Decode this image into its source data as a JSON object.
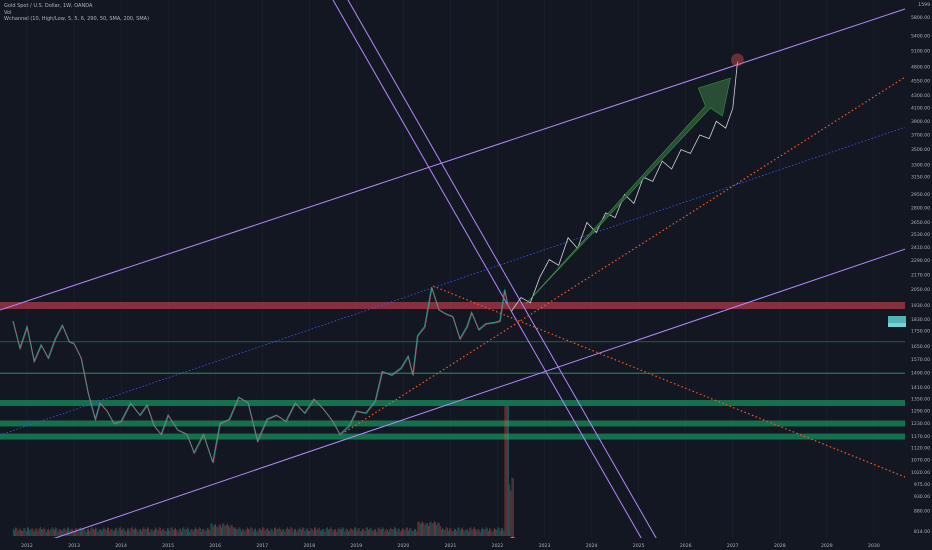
{
  "chart_data": {
    "type": "line",
    "title": "Gold Spot / U.S. Dollar, 1W, OANDA",
    "legend": [
      "Vol",
      "Wchannel (10, High/Low, 5, 5, 6, 290, 50, SMA, 200, SMA)"
    ],
    "top_axis_label": "1599",
    "x_ticks": [
      "2012",
      "2013",
      "2014",
      "2015",
      "2016",
      "2017",
      "2018",
      "2019",
      "2020",
      "2021",
      "2022",
      "2023",
      "2024",
      "2025",
      "2026",
      "2027",
      "2028",
      "2029",
      "2030"
    ],
    "y_ticks": [
      {
        "label": "5800.00",
        "value": 5800
      },
      {
        "label": "5400.00",
        "value": 5400
      },
      {
        "label": "5100.00",
        "value": 5100
      },
      {
        "label": "4800.00",
        "value": 4800
      },
      {
        "label": "4550.00",
        "value": 4550
      },
      {
        "label": "4300.00",
        "value": 4300
      },
      {
        "label": "4100.00",
        "value": 4100
      },
      {
        "label": "3900.00",
        "value": 3900
      },
      {
        "label": "3700.00",
        "value": 3700
      },
      {
        "label": "3500.00",
        "value": 3500
      },
      {
        "label": "3300.00",
        "value": 3300
      },
      {
        "label": "3150.00",
        "value": 3150
      },
      {
        "label": "2950.00",
        "value": 2950
      },
      {
        "label": "2800.00",
        "value": 2800
      },
      {
        "label": "2650.00",
        "value": 2650
      },
      {
        "label": "2530.00",
        "value": 2530
      },
      {
        "label": "2410.00",
        "value": 2410
      },
      {
        "label": "2290.00",
        "value": 2290
      },
      {
        "label": "2170.00",
        "value": 2170
      },
      {
        "label": "2050.00",
        "value": 2050
      },
      {
        "label": "1930.00",
        "value": 1930
      },
      {
        "label": "1830.00",
        "value": 1830
      },
      {
        "label": "1750.00",
        "value": 1750
      },
      {
        "label": "1650.00",
        "value": 1650
      },
      {
        "label": "1570.00",
        "value": 1570
      },
      {
        "label": "1490.00",
        "value": 1490
      },
      {
        "label": "1410.00",
        "value": 1410
      },
      {
        "label": "1350.00",
        "value": 1350
      },
      {
        "label": "1290.00",
        "value": 1290
      },
      {
        "label": "1230.00",
        "value": 1230
      },
      {
        "label": "1170.00",
        "value": 1170
      },
      {
        "label": "1120.00",
        "value": 1120
      },
      {
        "label": "1070.00",
        "value": 1070
      },
      {
        "label": "1020.00",
        "value": 1020
      },
      {
        "label": "975.00",
        "value": 975
      },
      {
        "label": "930.00",
        "value": 930
      },
      {
        "label": "880.00",
        "value": 880
      },
      {
        "label": "814.00",
        "value": 814
      }
    ],
    "price_path": [
      [
        2011.7,
        1820
      ],
      [
        2011.85,
        1640
      ],
      [
        2012.0,
        1780
      ],
      [
        2012.15,
        1560
      ],
      [
        2012.3,
        1660
      ],
      [
        2012.45,
        1580
      ],
      [
        2012.6,
        1700
      ],
      [
        2012.75,
        1790
      ],
      [
        2012.9,
        1680
      ],
      [
        2013.0,
        1670
      ],
      [
        2013.15,
        1580
      ],
      [
        2013.3,
        1380
      ],
      [
        2013.45,
        1250
      ],
      [
        2013.55,
        1330
      ],
      [
        2013.7,
        1290
      ],
      [
        2013.85,
        1230
      ],
      [
        2014.0,
        1240
      ],
      [
        2014.2,
        1330
      ],
      [
        2014.4,
        1270
      ],
      [
        2014.55,
        1320
      ],
      [
        2014.7,
        1220
      ],
      [
        2014.85,
        1180
      ],
      [
        2015.0,
        1270
      ],
      [
        2015.2,
        1200
      ],
      [
        2015.4,
        1180
      ],
      [
        2015.55,
        1100
      ],
      [
        2015.75,
        1180
      ],
      [
        2015.95,
        1060
      ],
      [
        2016.1,
        1230
      ],
      [
        2016.3,
        1250
      ],
      [
        2016.5,
        1360
      ],
      [
        2016.7,
        1330
      ],
      [
        2016.9,
        1150
      ],
      [
        2017.1,
        1250
      ],
      [
        2017.3,
        1270
      ],
      [
        2017.5,
        1240
      ],
      [
        2017.7,
        1330
      ],
      [
        2017.9,
        1280
      ],
      [
        2018.1,
        1350
      ],
      [
        2018.3,
        1300
      ],
      [
        2018.5,
        1240
      ],
      [
        2018.65,
        1180
      ],
      [
        2018.85,
        1220
      ],
      [
        2019.0,
        1290
      ],
      [
        2019.2,
        1280
      ],
      [
        2019.4,
        1340
      ],
      [
        2019.55,
        1500
      ],
      [
        2019.75,
        1480
      ],
      [
        2019.95,
        1520
      ],
      [
        2020.1,
        1590
      ],
      [
        2020.2,
        1480
      ],
      [
        2020.3,
        1720
      ],
      [
        2020.45,
        1780
      ],
      [
        2020.6,
        2070
      ],
      [
        2020.75,
        1900
      ],
      [
        2020.9,
        1870
      ],
      [
        2021.05,
        1850
      ],
      [
        2021.2,
        1700
      ],
      [
        2021.35,
        1780
      ],
      [
        2021.45,
        1880
      ],
      [
        2021.6,
        1760
      ],
      [
        2021.75,
        1800
      ],
      [
        2021.95,
        1810
      ],
      [
        2022.05,
        1820
      ],
      [
        2022.15,
        2050
      ],
      [
        2022.22,
        1930
      ],
      [
        2022.3,
        1890
      ]
    ],
    "projection_path": [
      [
        2022.3,
        1890
      ],
      [
        2022.5,
        1990
      ],
      [
        2022.7,
        1950
      ],
      [
        2022.9,
        2150
      ],
      [
        2023.1,
        2300
      ],
      [
        2023.3,
        2250
      ],
      [
        2023.5,
        2500
      ],
      [
        2023.7,
        2400
      ],
      [
        2023.9,
        2650
      ],
      [
        2024.1,
        2550
      ],
      [
        2024.3,
        2750
      ],
      [
        2024.5,
        2700
      ],
      [
        2024.7,
        2950
      ],
      [
        2024.9,
        2850
      ],
      [
        2025.1,
        3150
      ],
      [
        2025.3,
        3100
      ],
      [
        2025.5,
        3350
      ],
      [
        2025.7,
        3250
      ],
      [
        2025.9,
        3500
      ],
      [
        2026.1,
        3450
      ],
      [
        2026.3,
        3700
      ],
      [
        2026.5,
        3650
      ],
      [
        2026.65,
        3900
      ],
      [
        2026.85,
        3800
      ],
      [
        2027.0,
        4100
      ],
      [
        2027.1,
        4900
      ]
    ],
    "target_marker": [
      2027.1,
      4930
    ],
    "horizontal_zones": [
      1930,
      1490,
      1330,
      1230,
      1170
    ],
    "horizontal_lines": [
      1680
    ],
    "volume_spike_year": 2022.2
  }
}
